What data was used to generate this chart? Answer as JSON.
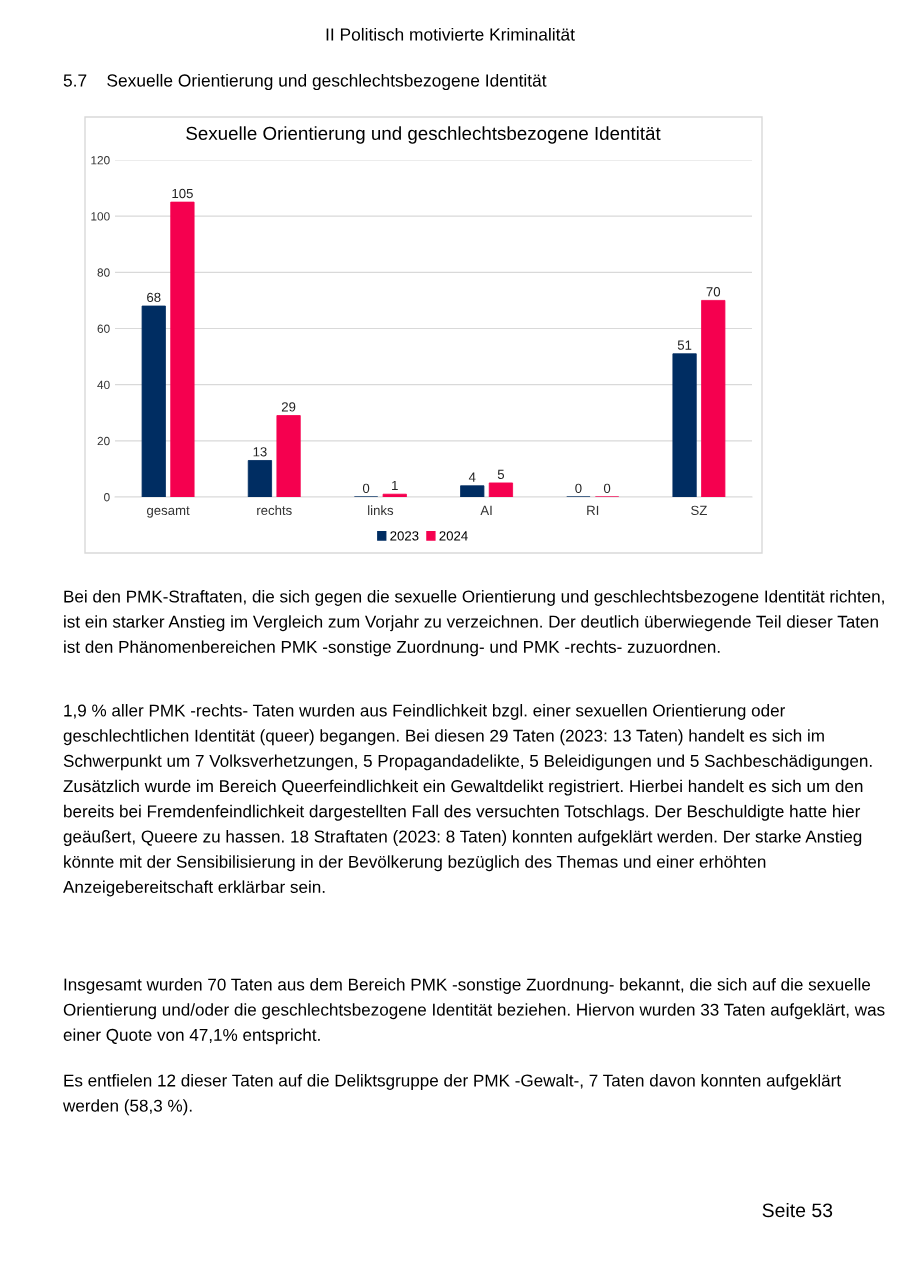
{
  "chart_data": {
    "type": "bar",
    "title": "Sexuelle Orientierung und geschlechtsbezogene Identität",
    "categories": [
      "gesamt",
      "rechts",
      "links",
      "AI",
      "RI",
      "SZ"
    ],
    "series": [
      {
        "name": "2023",
        "color": "#002d62",
        "values": [
          68,
          13,
          0,
          4,
          0,
          51
        ]
      },
      {
        "name": "2024",
        "color": "#f5004f",
        "values": [
          105,
          29,
          1,
          5,
          0,
          70
        ]
      }
    ],
    "ylim": [
      0,
      120
    ],
    "yticks": [
      0,
      20,
      40,
      60,
      80,
      100,
      120
    ],
    "grid": "y",
    "legend": "bottom",
    "data_labels": true,
    "annotations": [
      "II Politisch motivierte Kriminalität",
      "5.7    Sexuelle Orientierung und geschlechtsbezogene Identität",
      "Bei den PMK-Straftaten, die sich gegen die sexuelle Orientierung und geschlechtsbezogene Identität richten, ist ein starker Anstieg im Vergleich zum Vorjahr zu verzeichnen. Der deutlich überwiegende Teil dieser Taten ist den Phänomenbereichen PMK -sonstige Zuordnung- und PMK -rechts- zuzuordnen.",
      "1,9 % aller PMK -rechts- Taten wurden aus Feindlichkeit bzgl. einer sexuellen Orientierung oder geschlechtlichen Identität (queer) begangen. Bei diesen 29 Taten (2023: 13 Taten) handelt es sich im Schwerpunkt um 7 Volksverhetzungen, 5 Propagandadelikte, 5 Beleidigungen und 5 Sachbeschädigungen. Zusätzlich wurde im Bereich Queerfeindlichkeit ein Gewaltdelikt registriert. Hierbei handelt es sich um den bereits bei Fremdenfeindlichkeit dargestellten Fall des versuchten Totschlags. Der Beschuldigte hatte hier geäußert, Queere zu hassen. 18 Straftaten (2023: 8 Taten) konnten aufgeklärt werden. Der starke Anstieg könnte mit der Sensibilisierung in der Bevölkerung bezüglich des Themas und einer erhöhten Anzeigebereitschaft erklärbar sein.",
      "Insgesamt wurden 70 Taten aus dem Bereich PMK -sonstige Zuordnung- bekannt, die sich auf die sexuelle Orientierung und/oder die geschlechtsbezogene Identität beziehen. Hiervon wurden 33 Taten aufgeklärt, was einer Quote von 47,1% entspricht.",
      "Es entfielen 12 dieser Taten auf die Deliktsgruppe der PMK -Gewalt-, 7 Taten davon konnten aufgeklärt werden (58,3 %).",
      "Seite 53"
    ]
  }
}
